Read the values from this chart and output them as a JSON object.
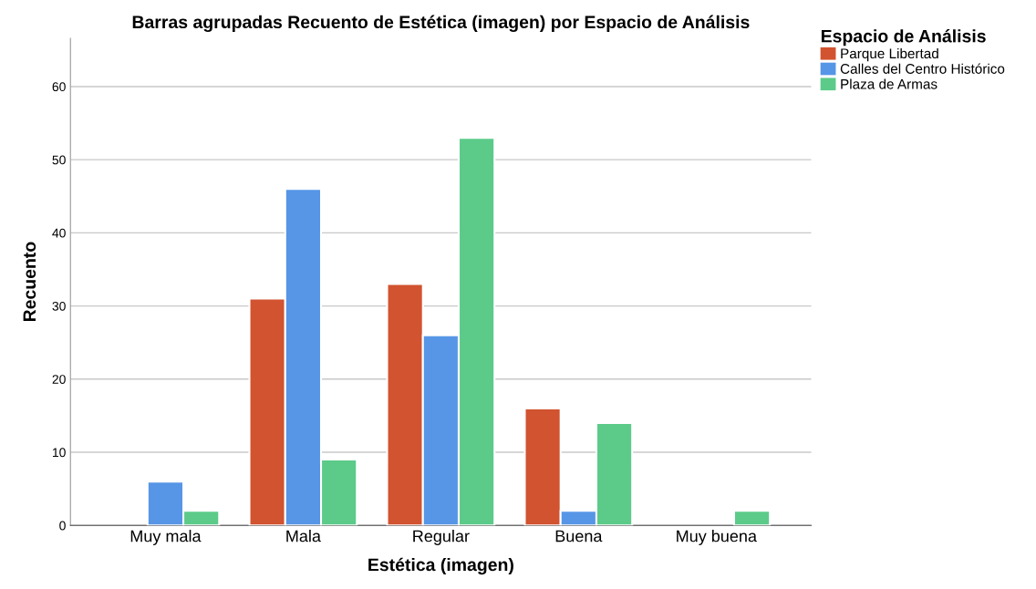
{
  "chart_data": {
    "type": "bar",
    "title": "Barras agrupadas Recuento de Estética (imagen) por Espacio de Análisis",
    "xlabel": "Estética (imagen)",
    "ylabel": "Recuento",
    "legend_title": "Espacio de Análisis",
    "categories": [
      "Muy mala",
      "Mala",
      "Regular",
      "Buena",
      "Muy buena"
    ],
    "series": [
      {
        "name": "Parque Libertad",
        "color": "#d1532f",
        "values": [
          null,
          31,
          33,
          16,
          null
        ]
      },
      {
        "name": "Calles del Centro Histórico",
        "color": "#5796e6",
        "values": [
          6,
          46,
          26,
          2,
          null
        ]
      },
      {
        "name": "Plaza de Armas",
        "color": "#5ccb89",
        "values": [
          2,
          9,
          53,
          14,
          2
        ]
      }
    ],
    "ylim": [
      0,
      66.6
    ],
    "yticks": [
      0,
      10,
      20,
      30,
      40,
      50,
      60
    ],
    "grid": "y",
    "legend": "top right"
  }
}
